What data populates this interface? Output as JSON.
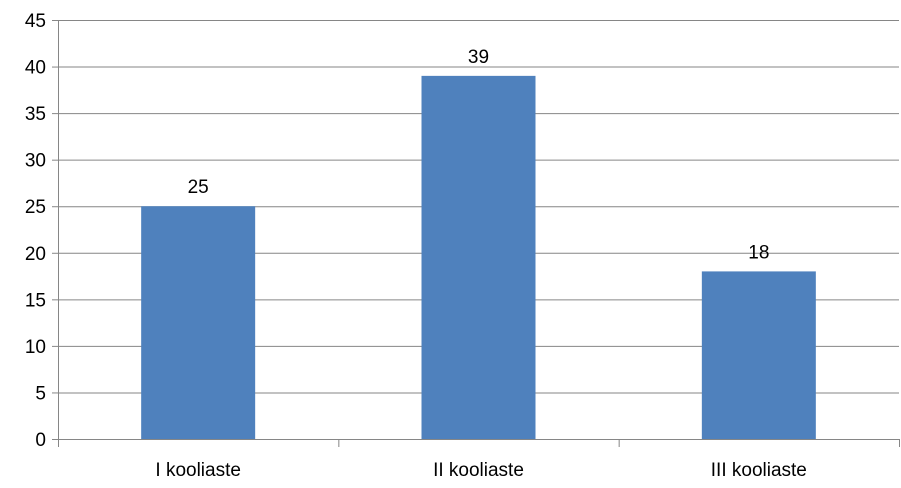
{
  "chart_data": {
    "type": "bar",
    "categories": [
      "I kooliaste",
      "II kooliaste",
      "III kooliaste"
    ],
    "values": [
      25,
      39,
      18
    ],
    "ylim": [
      0,
      45
    ],
    "ytick_step": 5,
    "yticks": [
      "0",
      "5",
      "10",
      "15",
      "20",
      "25",
      "30",
      "35",
      "40",
      "45"
    ],
    "data_labels": [
      "25",
      "39",
      "18"
    ],
    "grid": true,
    "legend": "none",
    "colors": {
      "bar": "#4F81BD",
      "grid": "#868686",
      "axis": "#868686",
      "text": "#000000"
    }
  }
}
